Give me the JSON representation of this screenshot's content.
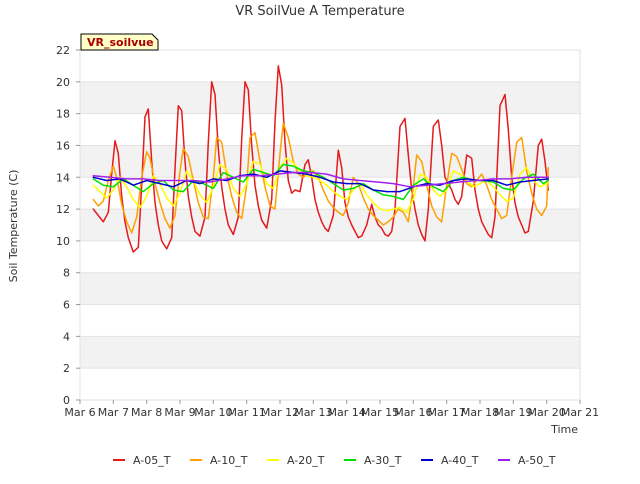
{
  "chart_data": {
    "type": "line",
    "title": "VR SoilVue A Temperature",
    "xlabel": "Time",
    "ylabel": "Soil Temperature (C)",
    "annotation": "VR_soilvue",
    "ylim": [
      0,
      22
    ],
    "xlim": [
      "Mar 6",
      "Mar 21"
    ],
    "yticks": [
      0,
      2,
      4,
      6,
      8,
      10,
      12,
      14,
      16,
      18,
      20,
      22
    ],
    "xticks": [
      "Mar 6",
      "Mar 7",
      "Mar 8",
      "Mar 9",
      "Mar 10",
      "Mar 11",
      "Mar 12",
      "Mar 13",
      "Mar 14",
      "Mar 15",
      "Mar 16",
      "Mar 17",
      "Mar 18",
      "Mar 19",
      "Mar 20",
      "Mar 21"
    ],
    "grid": "horizontal bands",
    "legend_position": "bottom",
    "x_units": "days since Mar 6",
    "series": [
      {
        "name": "A-05_T",
        "color": "#e41a1c",
        "x": [
          0.4,
          0.55,
          0.7,
          0.85,
          0.95,
          1.05,
          1.15,
          1.25,
          1.35,
          1.45,
          1.6,
          1.75,
          1.85,
          1.95,
          2.05,
          2.15,
          2.25,
          2.35,
          2.45,
          2.6,
          2.75,
          2.85,
          2.95,
          3.05,
          3.15,
          3.25,
          3.35,
          3.45,
          3.6,
          3.75,
          3.85,
          3.95,
          4.05,
          4.15,
          4.25,
          4.35,
          4.45,
          4.6,
          4.75,
          4.85,
          4.95,
          5.05,
          5.15,
          5.25,
          5.35,
          5.45,
          5.6,
          5.75,
          5.85,
          5.95,
          6.05,
          6.15,
          6.25,
          6.35,
          6.45,
          6.6,
          6.75,
          6.85,
          6.95,
          7.05,
          7.15,
          7.25,
          7.35,
          7.45,
          7.6,
          7.75,
          7.85,
          7.95,
          8.05,
          8.15,
          8.25,
          8.35,
          8.45,
          8.6,
          8.75,
          8.85,
          8.95,
          9.05,
          9.15,
          9.25,
          9.35,
          9.45,
          9.6,
          9.75,
          9.85,
          9.95,
          10.05,
          10.15,
          10.25,
          10.35,
          10.45,
          10.6,
          10.75,
          10.85,
          10.95,
          11.05,
          11.15,
          11.25,
          11.35,
          11.45,
          11.6,
          11.75,
          11.85,
          11.95,
          12.05,
          12.15,
          12.25,
          12.35,
          12.45,
          12.6,
          12.75,
          12.85,
          12.95,
          13.05,
          13.15,
          13.25,
          13.35,
          13.45,
          13.6,
          13.75,
          13.85,
          13.95,
          14.05
        ],
        "y": [
          12,
          11.6,
          11.2,
          11.8,
          14.2,
          16.3,
          15.5,
          12.8,
          11.2,
          10.2,
          9.3,
          9.6,
          13.5,
          17.8,
          18.3,
          15.0,
          12.4,
          11.0,
          10.0,
          9.5,
          10.2,
          14.5,
          18.5,
          18.2,
          15.0,
          12.8,
          11.5,
          10.6,
          10.3,
          11.5,
          16.2,
          20.0,
          19.2,
          15.8,
          13.4,
          12.0,
          11.0,
          10.4,
          11.5,
          16.4,
          20.0,
          19.5,
          16.0,
          13.5,
          12.2,
          11.3,
          10.8,
          12.6,
          17.5,
          21.0,
          19.8,
          16.2,
          13.8,
          13.0,
          13.2,
          13.1,
          14.8,
          15.1,
          14.0,
          12.6,
          11.8,
          11.2,
          10.8,
          10.6,
          11.6,
          15.7,
          14.6,
          12.4,
          11.5,
          11.0,
          10.6,
          10.2,
          10.3,
          11.0,
          12.3,
          11.5,
          11.0,
          10.8,
          10.4,
          10.3,
          10.6,
          12.0,
          17.2,
          17.7,
          15.4,
          13.2,
          12.0,
          11.0,
          10.4,
          10.0,
          12.0,
          17.2,
          17.6,
          16.0,
          14.0,
          13.6,
          13.2,
          12.6,
          12.3,
          12.8,
          15.4,
          15.2,
          13.2,
          12.0,
          11.2,
          10.8,
          10.4,
          10.2,
          11.5,
          18.5,
          19.2,
          17.0,
          14.0,
          12.4,
          11.5,
          11.0,
          10.5,
          10.6,
          12.5,
          16.0,
          16.4,
          15.0,
          13.2
        ]
      },
      {
        "name": "A-10_T",
        "color": "#ff9f00",
        "x": [
          0.4,
          0.55,
          0.7,
          0.85,
          1.0,
          1.1,
          1.25,
          1.4,
          1.55,
          1.7,
          1.85,
          2.0,
          2.1,
          2.25,
          2.4,
          2.55,
          2.7,
          2.85,
          3.0,
          3.1,
          3.25,
          3.4,
          3.55,
          3.7,
          3.85,
          4.0,
          4.1,
          4.25,
          4.4,
          4.55,
          4.7,
          4.85,
          5.0,
          5.1,
          5.25,
          5.4,
          5.55,
          5.7,
          5.85,
          6.0,
          6.1,
          6.25,
          6.4,
          6.55,
          6.7,
          6.85,
          7.0,
          7.15,
          7.3,
          7.45,
          7.6,
          7.75,
          7.9,
          8.05,
          8.2,
          8.35,
          8.5,
          8.65,
          8.8,
          8.95,
          9.1,
          9.25,
          9.4,
          9.55,
          9.7,
          9.85,
          10.0,
          10.1,
          10.25,
          10.4,
          10.55,
          10.7,
          10.85,
          11.0,
          11.15,
          11.3,
          11.45,
          11.6,
          11.75,
          11.9,
          12.05,
          12.2,
          12.35,
          12.5,
          12.65,
          12.8,
          12.95,
          13.1,
          13.25,
          13.4,
          13.55,
          13.7,
          13.85,
          14.0,
          14.05
        ],
        "y": [
          12.6,
          12.2,
          12.5,
          13.8,
          14.7,
          14.0,
          12.3,
          11.2,
          10.5,
          11.5,
          14.0,
          15.6,
          15.2,
          13.6,
          12.4,
          11.4,
          10.8,
          11.6,
          14.4,
          15.8,
          15.3,
          13.8,
          12.4,
          11.5,
          11.4,
          14.0,
          16.5,
          16.2,
          14.2,
          12.8,
          11.8,
          11.4,
          13.5,
          16.5,
          16.8,
          15.0,
          13.4,
          12.2,
          12.0,
          15.5,
          17.4,
          16.5,
          15.0,
          14.2,
          14.0,
          14.3,
          14.4,
          14.0,
          13.2,
          12.5,
          12.1,
          11.8,
          11.6,
          12.4,
          14.0,
          13.6,
          12.7,
          12.0,
          11.6,
          11.3,
          11.0,
          11.2,
          11.5,
          12.0,
          11.8,
          11.2,
          13.4,
          15.4,
          15.0,
          13.5,
          12.2,
          11.5,
          11.2,
          13.5,
          15.5,
          15.3,
          14.5,
          13.6,
          13.4,
          13.8,
          14.2,
          13.5,
          12.6,
          12.0,
          11.4,
          11.6,
          14.0,
          16.2,
          16.5,
          14.4,
          13.0,
          12.0,
          11.6,
          12.2,
          14.6
        ]
      },
      {
        "name": "A-20_T",
        "color": "#ffff00",
        "x": [
          0.4,
          0.6,
          0.8,
          1.0,
          1.2,
          1.4,
          1.6,
          1.8,
          2.0,
          2.2,
          2.4,
          2.6,
          2.8,
          3.0,
          3.2,
          3.4,
          3.6,
          3.8,
          4.0,
          4.2,
          4.4,
          4.6,
          4.8,
          5.0,
          5.2,
          5.4,
          5.6,
          5.8,
          6.0,
          6.2,
          6.4,
          6.6,
          6.8,
          7.0,
          7.2,
          7.4,
          7.6,
          7.8,
          8.0,
          8.2,
          8.4,
          8.6,
          8.8,
          9.0,
          9.2,
          9.4,
          9.6,
          9.8,
          10.0,
          10.2,
          10.4,
          10.6,
          10.8,
          11.0,
          11.2,
          11.4,
          11.6,
          11.8,
          12.0,
          12.2,
          12.4,
          12.6,
          12.8,
          13.0,
          13.2,
          13.4,
          13.6,
          13.8,
          14.0,
          14.05
        ],
        "y": [
          13.5,
          13.1,
          12.7,
          13.2,
          14.0,
          13.4,
          12.6,
          12.1,
          12.8,
          14.1,
          13.6,
          12.7,
          12.2,
          13.0,
          14.4,
          13.8,
          12.9,
          12.4,
          13.4,
          14.8,
          14.5,
          13.3,
          12.8,
          13.6,
          15.0,
          14.8,
          13.6,
          13.3,
          14.6,
          15.2,
          14.9,
          14.4,
          14.1,
          14.0,
          13.8,
          13.5,
          13.1,
          12.8,
          12.6,
          13.2,
          13.6,
          12.9,
          12.4,
          12.0,
          11.9,
          12.0,
          12.1,
          11.8,
          12.6,
          14.2,
          14.0,
          13.2,
          12.8,
          13.2,
          14.4,
          14.2,
          13.8,
          13.4,
          13.6,
          13.8,
          13.4,
          12.9,
          12.5,
          12.7,
          14.2,
          14.6,
          13.8,
          13.4,
          13.6,
          14.0
        ]
      },
      {
        "name": "A-30_T",
        "color": "#00e000",
        "x": [
          0.4,
          0.7,
          1.0,
          1.3,
          1.6,
          1.9,
          2.2,
          2.5,
          2.8,
          3.1,
          3.4,
          3.7,
          4.0,
          4.3,
          4.6,
          4.9,
          5.2,
          5.5,
          5.8,
          6.1,
          6.4,
          6.7,
          7.0,
          7.3,
          7.6,
          7.9,
          8.2,
          8.5,
          8.8,
          9.1,
          9.4,
          9.7,
          10.0,
          10.3,
          10.6,
          10.9,
          11.2,
          11.5,
          11.8,
          12.1,
          12.4,
          12.7,
          13.0,
          13.3,
          13.6,
          13.9,
          14.05
        ],
        "y": [
          13.9,
          13.5,
          13.4,
          13.9,
          13.5,
          13.1,
          13.6,
          13.8,
          13.2,
          13.1,
          13.8,
          13.6,
          13.3,
          14.3,
          14.0,
          13.7,
          14.5,
          14.3,
          14.1,
          14.8,
          14.7,
          14.4,
          14.3,
          14.0,
          13.6,
          13.2,
          13.3,
          13.6,
          13.2,
          12.9,
          12.8,
          12.6,
          13.5,
          13.9,
          13.4,
          13.1,
          13.8,
          14.0,
          13.8,
          13.8,
          13.7,
          13.3,
          13.2,
          13.9,
          14.2,
          13.6,
          13.8
        ]
      },
      {
        "name": "A-40_T",
        "color": "#0000cc",
        "x": [
          0.4,
          0.8,
          1.2,
          1.6,
          2.0,
          2.4,
          2.8,
          3.2,
          3.6,
          4.0,
          4.4,
          4.8,
          5.2,
          5.6,
          6.0,
          6.4,
          6.8,
          7.2,
          7.6,
          8.0,
          8.4,
          8.8,
          9.2,
          9.6,
          10.0,
          10.4,
          10.8,
          11.2,
          11.6,
          12.0,
          12.4,
          12.8,
          13.2,
          13.6,
          14.05
        ],
        "y": [
          14.0,
          13.8,
          13.9,
          13.5,
          13.8,
          13.6,
          13.4,
          13.8,
          13.6,
          13.9,
          13.8,
          14.1,
          14.2,
          14.0,
          14.4,
          14.3,
          14.2,
          14.0,
          13.7,
          13.6,
          13.6,
          13.2,
          13.1,
          13.1,
          13.4,
          13.6,
          13.5,
          13.8,
          13.9,
          13.8,
          13.8,
          13.5,
          13.7,
          13.8,
          13.9
        ]
      },
      {
        "name": "A-50_T",
        "color": "#a020f0",
        "x": [
          0.4,
          0.9,
          1.4,
          1.9,
          2.4,
          2.9,
          3.4,
          3.9,
          4.4,
          4.9,
          5.4,
          5.9,
          6.4,
          6.9,
          7.4,
          7.9,
          8.4,
          8.9,
          9.4,
          9.9,
          10.4,
          10.9,
          11.4,
          11.9,
          12.4,
          12.9,
          13.4,
          13.9,
          14.05
        ],
        "y": [
          14.1,
          14.0,
          13.9,
          13.9,
          13.8,
          13.8,
          13.8,
          13.7,
          13.9,
          14.1,
          14.1,
          14.2,
          14.3,
          14.3,
          14.2,
          13.9,
          13.8,
          13.7,
          13.6,
          13.4,
          13.5,
          13.6,
          13.7,
          13.8,
          13.9,
          13.9,
          14.0,
          14.0,
          14.0
        ]
      }
    ]
  }
}
